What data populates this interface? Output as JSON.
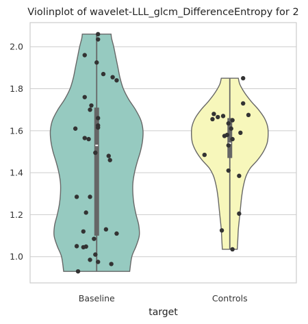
{
  "chart_data": {
    "type": "violin",
    "title": "Violinplot of wavelet-LLL_glcm_DifferenceEntropy for 2",
    "xlabel": "target",
    "ylabel": "",
    "categories": [
      "Baseline",
      "Controls"
    ],
    "ylim": [
      0.875,
      2.115
    ],
    "yticks": [
      1.0,
      1.2,
      1.4,
      1.6,
      1.8,
      2.0
    ],
    "ytick_labels": [
      "1.0",
      "1.2",
      "1.4",
      "1.6",
      "1.8",
      "2.0"
    ],
    "grid": "horizontal",
    "colors": {
      "Baseline": "#96cac0",
      "Controls": "#f7f7bb",
      "outline": "#666666",
      "points": "#333333",
      "box": "#666666",
      "median": "#ffffff",
      "grid": "#cccccc"
    },
    "series": [
      {
        "name": "Baseline",
        "min": 0.93,
        "max": 2.06,
        "q1": 1.1,
        "median": 1.53,
        "q3": 1.71,
        "profile": [
          [
            0.93,
            0.62
          ],
          [
            1.0,
            0.66
          ],
          [
            1.05,
            0.74
          ],
          [
            1.1,
            0.8
          ],
          [
            1.15,
            0.79
          ],
          [
            1.2,
            0.74
          ],
          [
            1.25,
            0.7
          ],
          [
            1.3,
            0.68
          ],
          [
            1.35,
            0.68
          ],
          [
            1.4,
            0.71
          ],
          [
            1.45,
            0.76
          ],
          [
            1.5,
            0.82
          ],
          [
            1.55,
            0.86
          ],
          [
            1.6,
            0.87
          ],
          [
            1.65,
            0.83
          ],
          [
            1.7,
            0.73
          ],
          [
            1.75,
            0.6
          ],
          [
            1.8,
            0.5
          ],
          [
            1.85,
            0.44
          ],
          [
            1.9,
            0.4
          ],
          [
            1.95,
            0.36
          ],
          [
            2.0,
            0.32
          ],
          [
            2.04,
            0.28
          ],
          [
            2.06,
            0.27
          ]
        ],
        "points": [
          [
            2.06,
            0.01
          ],
          [
            2.035,
            0.01
          ],
          [
            1.96,
            -0.09
          ],
          [
            1.925,
            0.0
          ],
          [
            1.87,
            0.05
          ],
          [
            1.855,
            0.12
          ],
          [
            1.84,
            0.15
          ],
          [
            1.76,
            -0.09
          ],
          [
            1.72,
            -0.04
          ],
          [
            1.7,
            -0.05
          ],
          [
            1.66,
            0.01
          ],
          [
            1.625,
            0.01
          ],
          [
            1.615,
            0.01
          ],
          [
            1.61,
            -0.16
          ],
          [
            1.565,
            -0.09
          ],
          [
            1.56,
            -0.06
          ],
          [
            1.495,
            -0.01
          ],
          [
            1.48,
            0.09
          ],
          [
            1.46,
            0.1
          ],
          [
            1.285,
            -0.15
          ],
          [
            1.285,
            -0.05
          ],
          [
            1.21,
            -0.08
          ],
          [
            1.13,
            0.07
          ],
          [
            1.12,
            -0.1
          ],
          [
            1.11,
            0.15
          ],
          [
            1.085,
            -0.02
          ],
          [
            1.05,
            -0.15
          ],
          [
            1.048,
            -0.08
          ],
          [
            1.045,
            -0.1
          ],
          [
            1.01,
            -0.01
          ],
          [
            0.985,
            -0.05
          ],
          [
            0.975,
            0.01
          ],
          [
            0.965,
            0.11
          ],
          [
            0.93,
            -0.14
          ]
        ]
      },
      {
        "name": "Controls",
        "min": 1.035,
        "max": 1.85,
        "q1": 1.47,
        "median": 1.54,
        "q3": 1.66,
        "profile": [
          [
            1.035,
            0.14
          ],
          [
            1.08,
            0.15
          ],
          [
            1.13,
            0.16
          ],
          [
            1.18,
            0.18
          ],
          [
            1.23,
            0.2
          ],
          [
            1.28,
            0.22
          ],
          [
            1.33,
            0.25
          ],
          [
            1.38,
            0.3
          ],
          [
            1.42,
            0.38
          ],
          [
            1.46,
            0.52
          ],
          [
            1.5,
            0.63
          ],
          [
            1.54,
            0.7
          ],
          [
            1.58,
            0.72
          ],
          [
            1.62,
            0.71
          ],
          [
            1.66,
            0.65
          ],
          [
            1.7,
            0.54
          ],
          [
            1.74,
            0.4
          ],
          [
            1.78,
            0.28
          ],
          [
            1.82,
            0.19
          ],
          [
            1.85,
            0.16
          ]
        ],
        "points": [
          [
            1.85,
            0.1
          ],
          [
            1.73,
            0.1
          ],
          [
            1.68,
            -0.12
          ],
          [
            1.675,
            0.14
          ],
          [
            1.67,
            -0.05
          ],
          [
            1.665,
            -0.09
          ],
          [
            1.655,
            -0.13
          ],
          [
            1.65,
            0.02
          ],
          [
            1.635,
            -0.01
          ],
          [
            1.61,
            0.01
          ],
          [
            1.59,
            0.08
          ],
          [
            1.58,
            -0.02
          ],
          [
            1.575,
            -0.04
          ],
          [
            1.56,
            0.02
          ],
          [
            1.53,
            -0.01
          ],
          [
            1.485,
            -0.19
          ],
          [
            1.41,
            -0.01
          ],
          [
            1.385,
            0.07
          ],
          [
            1.205,
            0.07
          ],
          [
            1.125,
            -0.06
          ],
          [
            1.035,
            0.02
          ]
        ]
      }
    ]
  }
}
